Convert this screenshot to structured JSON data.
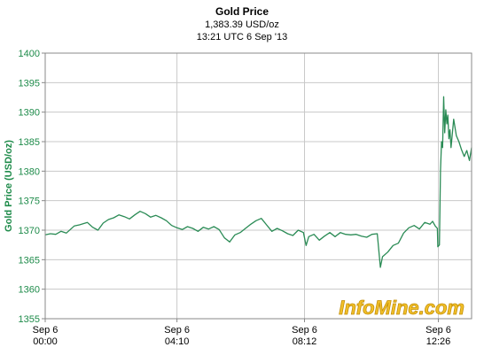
{
  "header": {
    "title": "Gold Price",
    "price": "1,383.39 USD/oz",
    "timestamp": "13:21 UTC 6 Sep '13"
  },
  "watermark": "InfoMine.com",
  "colors": {
    "line": "#2a8b55",
    "axis_text": "#1e8b4a",
    "grid": "#c8c8c8",
    "watermark_fill": "#f2c029"
  },
  "chart_data": {
    "type": "line",
    "title": "Gold Price",
    "ylabel": "Gold Price (USD/oz)",
    "xlabel": "",
    "ylim": [
      1355,
      1400
    ],
    "xlim": [
      0,
      809
    ],
    "y_ticks": [
      1355,
      1360,
      1365,
      1370,
      1375,
      1380,
      1385,
      1390,
      1395,
      1400
    ],
    "x_ticks": [
      {
        "t": 0,
        "line1": "Sep 6",
        "line2": "00:00"
      },
      {
        "t": 250,
        "line1": "Sep 6",
        "line2": "04:10"
      },
      {
        "t": 492,
        "line1": "Sep 6",
        "line2": "08:12"
      },
      {
        "t": 746,
        "line1": "Sep 6",
        "line2": "12:26"
      }
    ],
    "grid": true,
    "x_unit": "minutes after Sep 6 00:00 UTC",
    "series": [
      {
        "name": "",
        "x": [
          0,
          10,
          20,
          30,
          40,
          55,
          65,
          80,
          90,
          100,
          110,
          120,
          130,
          140,
          150,
          160,
          170,
          180,
          190,
          200,
          210,
          220,
          230,
          240,
          250,
          260,
          270,
          280,
          290,
          300,
          310,
          320,
          330,
          340,
          350,
          360,
          370,
          380,
          390,
          400,
          410,
          420,
          430,
          440,
          450,
          460,
          470,
          480,
          490,
          495,
          500,
          510,
          520,
          530,
          540,
          550,
          560,
          570,
          580,
          590,
          600,
          610,
          620,
          630,
          636,
          640,
          650,
          660,
          670,
          680,
          690,
          700,
          710,
          720,
          730,
          735,
          740,
          744,
          745,
          748,
          750,
          752,
          754,
          756,
          758,
          760,
          762,
          764,
          766,
          768,
          770,
          775,
          780,
          785,
          790,
          795,
          800,
          805,
          809
        ],
        "values": [
          1369.2,
          1369.4,
          1369.3,
          1369.8,
          1369.5,
          1370.7,
          1370.9,
          1371.3,
          1370.5,
          1370.0,
          1371.2,
          1371.8,
          1372.1,
          1372.6,
          1372.3,
          1371.9,
          1372.6,
          1373.2,
          1372.8,
          1372.2,
          1372.5,
          1372.1,
          1371.6,
          1370.8,
          1370.4,
          1370.1,
          1370.6,
          1370.3,
          1369.8,
          1370.5,
          1370.2,
          1370.6,
          1370.1,
          1368.7,
          1368.0,
          1369.2,
          1369.6,
          1370.3,
          1371.0,
          1371.6,
          1372.0,
          1370.9,
          1369.8,
          1370.3,
          1369.9,
          1369.4,
          1369.1,
          1370.0,
          1369.6,
          1367.4,
          1368.9,
          1369.3,
          1368.3,
          1369.0,
          1369.6,
          1368.9,
          1369.6,
          1369.3,
          1369.2,
          1369.3,
          1369.0,
          1368.8,
          1369.3,
          1369.4,
          1363.7,
          1365.5,
          1366.3,
          1367.4,
          1367.8,
          1369.5,
          1370.4,
          1370.8,
          1370.2,
          1371.3,
          1371.0,
          1371.5,
          1370.7,
          1370.3,
          1367.2,
          1367.5,
          1380.0,
          1385.0,
          1384.0,
          1392.6,
          1386.5,
          1390.4,
          1388.0,
          1389.5,
          1385.5,
          1387.0,
          1384.0,
          1388.8,
          1386.0,
          1385.0,
          1383.6,
          1382.5,
          1383.5,
          1381.8,
          1384.0
        ]
      }
    ]
  }
}
